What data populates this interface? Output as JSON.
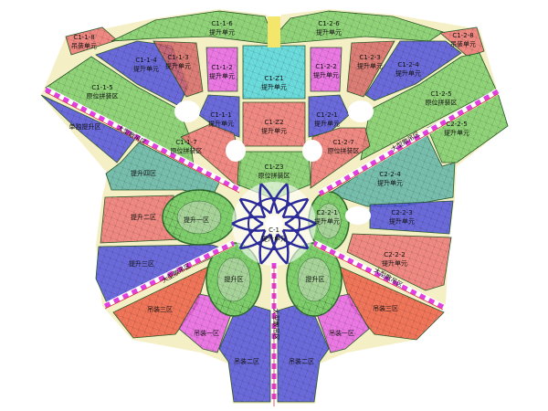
{
  "colors": {
    "green": "#7fcf6c",
    "blue": "#5454e0",
    "red": "#f07878",
    "brown_red": "#d86a6a",
    "magenta": "#ea64ea",
    "cyan": "#54d8e2",
    "teal": "#62b6aa",
    "orange_red": "#f06048",
    "band": "#e040e0",
    "gap": "#f4efc4"
  },
  "labels": [
    {
      "code": "C1-1-8",
      "name": "吊装单元"
    },
    {
      "code": "C1-1-6",
      "name": "提升单元"
    },
    {
      "code": "C1-2-6",
      "name": "提升单元"
    },
    {
      "code": "C1-2-8",
      "name": "吊装单元"
    },
    {
      "code": "C1-1-4",
      "name": "提升单元"
    },
    {
      "code": "C1-1-3",
      "name": "提升单元"
    },
    {
      "code": "C1-1-2",
      "name": "提升单元"
    },
    {
      "code": "C1-Z1",
      "name": "提升单元"
    },
    {
      "code": "C1-2-2",
      "name": "提升单元"
    },
    {
      "code": "C1-2-3",
      "name": "提升单元"
    },
    {
      "code": "C1-2-4",
      "name": "提升单元"
    },
    {
      "code": "C1-1-5",
      "name": "原位拼装区"
    },
    {
      "code": "",
      "name": "单独提升区"
    },
    {
      "code": "C1-1-1",
      "name": "提升单元"
    },
    {
      "code": "C1-Z2",
      "name": "提升单元"
    },
    {
      "code": "C1-2-1",
      "name": "提升单元"
    },
    {
      "code": "C1-2-5",
      "name": "原位拼装区"
    },
    {
      "code": "C2-2-5",
      "name": "提升单元"
    },
    {
      "code": "C1-1-7",
      "name": "原位拼装区"
    },
    {
      "code": "C1-Z3",
      "name": "原位拼装区"
    },
    {
      "code": "C1-2-7",
      "name": "原位拼装区"
    },
    {
      "code": "",
      "name": "提升四区"
    },
    {
      "code": "C2-2-4",
      "name": "提升单元"
    },
    {
      "code": "",
      "name": "提升一区"
    },
    {
      "code": "C2-2-1",
      "name": "提升单元"
    },
    {
      "code": "C2-2-3",
      "name": "提升单元"
    },
    {
      "code": "",
      "name": "提升二区"
    },
    {
      "code": "C-1",
      "name": "提升单元"
    },
    {
      "code": "C2-2-2",
      "name": "提升单元"
    },
    {
      "code": "",
      "name": "提升三区"
    },
    {
      "code": "",
      "name": "提升区"
    },
    {
      "code": "",
      "name": "提升区"
    },
    {
      "code": "",
      "name": "吊装三区"
    },
    {
      "code": "",
      "name": "吊装三区"
    },
    {
      "code": "",
      "name": "吊装一区"
    },
    {
      "code": "",
      "name": "吊装一区"
    },
    {
      "code": "",
      "name": "吊装二区"
    },
    {
      "code": "",
      "name": "吊装二区"
    }
  ],
  "band_labels": [
    "大型散吊区",
    "大型散吊区",
    "大型散吊区",
    "大型散吊区",
    "大型散吊区"
  ]
}
